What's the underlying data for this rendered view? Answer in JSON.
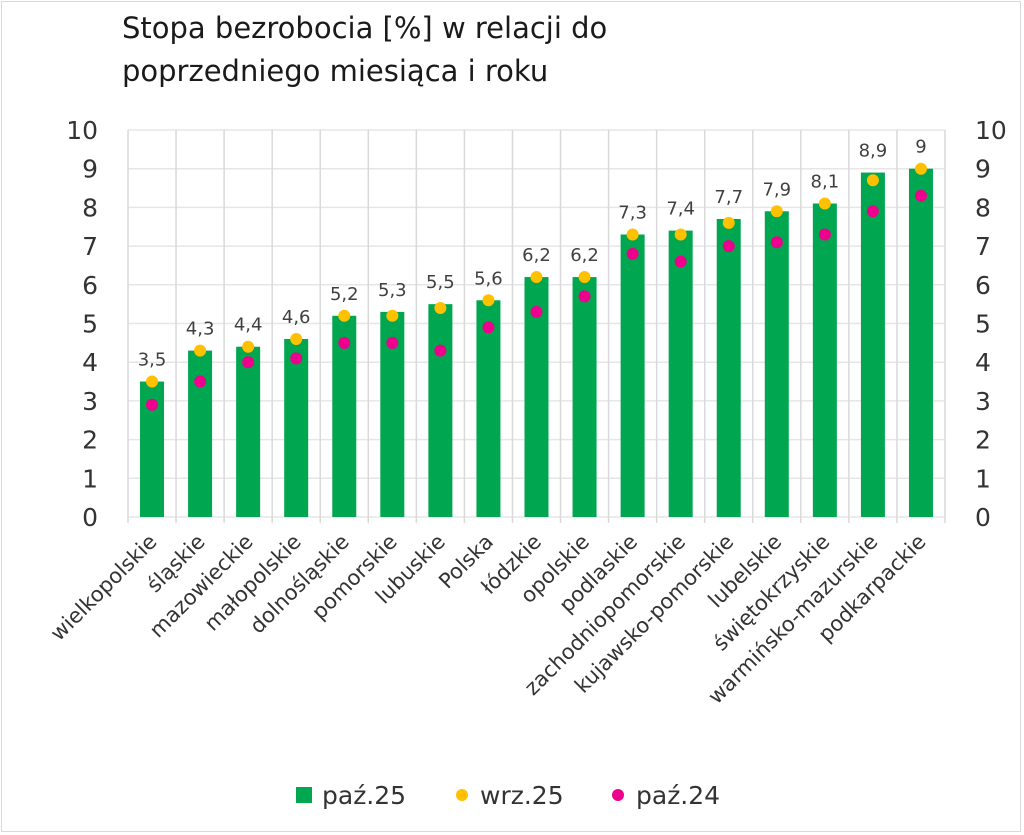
{
  "chart_data": {
    "type": "bar",
    "title_lines": [
      "Stopa bezrobocia [%] w relacji do",
      "poprzedniego miesiąca i roku"
    ],
    "categories": [
      "wielkopolskie",
      "śląskie",
      "mazowieckie",
      "małopolskie",
      "dolnośląskie",
      "pomorskie",
      "lubuskie",
      "Polska",
      "łódzkie",
      "opolskie",
      "podlaskie",
      "zachodniopomorskie",
      "kujawsko-pomorskie",
      "lubelskie",
      "świętokrzyskie",
      "warmińsko-mazurskie",
      "podkarpackie"
    ],
    "series": [
      {
        "name": "paź.25",
        "kind": "bar",
        "color": "#00a650",
        "values": [
          3.5,
          4.3,
          4.4,
          4.6,
          5.2,
          5.3,
          5.5,
          5.6,
          6.2,
          6.2,
          7.3,
          7.4,
          7.7,
          7.9,
          8.1,
          8.9,
          9.0
        ],
        "labels": [
          "3,5",
          "4,3",
          "4,4",
          "4,6",
          "5,2",
          "5,3",
          "5,5",
          "5,6",
          "6,2",
          "6,2",
          "7,3",
          "7,4",
          "7,7",
          "7,9",
          "8,1",
          "8,9",
          "9"
        ]
      },
      {
        "name": "wrz.25",
        "kind": "dot",
        "color": "#ffc000",
        "values": [
          3.5,
          4.3,
          4.4,
          4.6,
          5.2,
          5.2,
          5.4,
          5.6,
          6.2,
          6.2,
          7.3,
          7.3,
          7.6,
          7.9,
          8.1,
          8.7,
          9.0
        ]
      },
      {
        "name": "paź.24",
        "kind": "dot",
        "color": "#ec008c",
        "values": [
          2.9,
          3.5,
          4.0,
          4.1,
          4.5,
          4.5,
          4.3,
          4.9,
          5.3,
          5.7,
          6.8,
          6.6,
          7.0,
          7.1,
          7.3,
          7.9,
          8.3
        ]
      }
    ],
    "ylim": [
      0,
      10
    ],
    "yticks": [
      "0",
      "1",
      "2",
      "3",
      "4",
      "5",
      "6",
      "7",
      "8",
      "9",
      "10"
    ],
    "secondary_y_axis": true,
    "grid": true,
    "legend_position": "bottom"
  }
}
